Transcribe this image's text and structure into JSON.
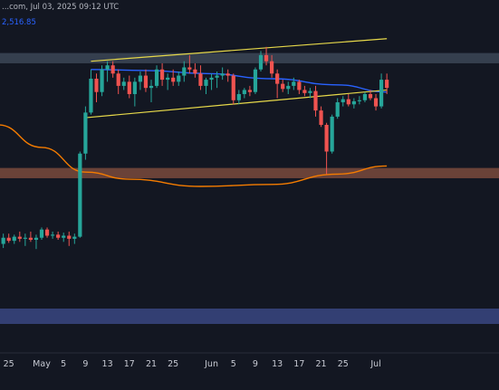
{
  "header": {
    "source_time": "...com, Jul 03, 2025 09:12 UTC",
    "ma_value": "2,516.85"
  },
  "colors": {
    "background": "#131722",
    "bullish": "#26a69a",
    "bearish": "#ef5350",
    "ma_blue": "#2962ff",
    "ma_orange": "#f57c00",
    "trendline": "#e6d84a",
    "zone_resistance": "#3c4656",
    "zone_support": "#7a4a3c",
    "zone_lower": "#3a4781"
  },
  "chart_data": {
    "type": "candlestick",
    "title": "",
    "x_tick_labels": [
      "25",
      "May",
      "5",
      "9",
      "13",
      "17",
      "21",
      "25",
      "Jun",
      "5",
      "9",
      "13",
      "17",
      "21",
      "25",
      "Jul"
    ],
    "grid": false,
    "zones": [
      {
        "name": "resistance",
        "from": 2700,
        "to": 2650
      },
      {
        "name": "support",
        "from": 2140,
        "to": 2090
      },
      {
        "name": "lower",
        "from": 1455,
        "to": 1380
      }
    ],
    "trendlines": [
      {
        "name": "upper",
        "from": {
          "x": "May 10",
          "y": 2660
        },
        "to": {
          "x": "Jul 03",
          "y": 2770
        }
      },
      {
        "name": "lower",
        "from": {
          "x": "May 9",
          "y": 2385
        },
        "to": {
          "x": "Jul 03",
          "y": 2520
        }
      }
    ],
    "series": [
      {
        "name": "",
        "type": "moving_average",
        "color": "#2962ff",
        "values": [
          {
            "x": "May 10",
            "y": 2620
          },
          {
            "x": "May 20",
            "y": 2615
          },
          {
            "x": "May 31",
            "y": 2600
          },
          {
            "x": "Jun 12",
            "y": 2575
          },
          {
            "x": "Jun 24",
            "y": 2545
          },
          {
            "x": "Jul 03",
            "y": 2510
          }
        ]
      },
      {
        "name": "",
        "type": "moving_average",
        "color": "#f57c00",
        "values": [
          {
            "x": "Apr 23",
            "y": 2350
          },
          {
            "x": "May 1",
            "y": 2240
          },
          {
            "x": "May 9",
            "y": 2120
          },
          {
            "x": "May 17",
            "y": 2085
          },
          {
            "x": "May 30",
            "y": 2050
          },
          {
            "x": "Jun 12",
            "y": 2060
          },
          {
            "x": "Jun 24",
            "y": 2110
          },
          {
            "x": "Jul 03",
            "y": 2150
          }
        ]
      }
    ],
    "candles": [
      {
        "d": "Apr 23",
        "o": 1790,
        "h": 1810,
        "l": 1750,
        "c": 1770
      },
      {
        "d": "Apr 24",
        "o": 1770,
        "h": 1820,
        "l": 1750,
        "c": 1800
      },
      {
        "d": "Apr 25",
        "o": 1800,
        "h": 1820,
        "l": 1775,
        "c": 1785
      },
      {
        "d": "Apr 26",
        "o": 1785,
        "h": 1815,
        "l": 1770,
        "c": 1805
      },
      {
        "d": "Apr 27",
        "o": 1805,
        "h": 1830,
        "l": 1780,
        "c": 1795
      },
      {
        "d": "Apr 28",
        "o": 1795,
        "h": 1820,
        "l": 1760,
        "c": 1800
      },
      {
        "d": "Apr 29",
        "o": 1800,
        "h": 1830,
        "l": 1780,
        "c": 1790
      },
      {
        "d": "Apr 30",
        "o": 1790,
        "h": 1815,
        "l": 1745,
        "c": 1800
      },
      {
        "d": "May 1",
        "o": 1800,
        "h": 1850,
        "l": 1790,
        "c": 1840
      },
      {
        "d": "May 2",
        "o": 1840,
        "h": 1850,
        "l": 1800,
        "c": 1810
      },
      {
        "d": "May 3",
        "o": 1810,
        "h": 1830,
        "l": 1795,
        "c": 1815
      },
      {
        "d": "May 4",
        "o": 1815,
        "h": 1830,
        "l": 1790,
        "c": 1800
      },
      {
        "d": "May 5",
        "o": 1800,
        "h": 1825,
        "l": 1780,
        "c": 1810
      },
      {
        "d": "May 6",
        "o": 1810,
        "h": 1830,
        "l": 1760,
        "c": 1795
      },
      {
        "d": "May 7",
        "o": 1795,
        "h": 1820,
        "l": 1770,
        "c": 1805
      },
      {
        "d": "May 8",
        "o": 1805,
        "h": 2220,
        "l": 1800,
        "c": 2210
      },
      {
        "d": "May 9",
        "o": 2210,
        "h": 2440,
        "l": 2180,
        "c": 2410
      },
      {
        "d": "May 10",
        "o": 2410,
        "h": 2620,
        "l": 2400,
        "c": 2575
      },
      {
        "d": "May 11",
        "o": 2575,
        "h": 2600,
        "l": 2460,
        "c": 2510
      },
      {
        "d": "May 12",
        "o": 2510,
        "h": 2640,
        "l": 2490,
        "c": 2620
      },
      {
        "d": "May 13",
        "o": 2620,
        "h": 2660,
        "l": 2560,
        "c": 2640
      },
      {
        "d": "May 14",
        "o": 2640,
        "h": 2660,
        "l": 2580,
        "c": 2600
      },
      {
        "d": "May 15",
        "o": 2600,
        "h": 2620,
        "l": 2500,
        "c": 2540
      },
      {
        "d": "May 16",
        "o": 2540,
        "h": 2580,
        "l": 2520,
        "c": 2560
      },
      {
        "d": "May 17",
        "o": 2560,
        "h": 2590,
        "l": 2480,
        "c": 2500
      },
      {
        "d": "May 18",
        "o": 2500,
        "h": 2580,
        "l": 2440,
        "c": 2560
      },
      {
        "d": "May 19",
        "o": 2560,
        "h": 2610,
        "l": 2520,
        "c": 2590
      },
      {
        "d": "May 20",
        "o": 2590,
        "h": 2620,
        "l": 2510,
        "c": 2530
      },
      {
        "d": "May 21",
        "o": 2530,
        "h": 2570,
        "l": 2460,
        "c": 2540
      },
      {
        "d": "May 22",
        "o": 2540,
        "h": 2640,
        "l": 2530,
        "c": 2620
      },
      {
        "d": "May 23",
        "o": 2620,
        "h": 2650,
        "l": 2540,
        "c": 2570
      },
      {
        "d": "May 24",
        "o": 2570,
        "h": 2600,
        "l": 2520,
        "c": 2580
      },
      {
        "d": "May 25",
        "o": 2580,
        "h": 2620,
        "l": 2540,
        "c": 2560
      },
      {
        "d": "May 26",
        "o": 2560,
        "h": 2610,
        "l": 2540,
        "c": 2590
      },
      {
        "d": "May 27",
        "o": 2590,
        "h": 2660,
        "l": 2560,
        "c": 2630
      },
      {
        "d": "May 28",
        "o": 2630,
        "h": 2690,
        "l": 2600,
        "c": 2620
      },
      {
        "d": "May 29",
        "o": 2620,
        "h": 2650,
        "l": 2580,
        "c": 2600
      },
      {
        "d": "May 30",
        "o": 2600,
        "h": 2640,
        "l": 2520,
        "c": 2540
      },
      {
        "d": "May 31",
        "o": 2540,
        "h": 2580,
        "l": 2500,
        "c": 2570
      },
      {
        "d": "Jun 1",
        "o": 2570,
        "h": 2600,
        "l": 2520,
        "c": 2580
      },
      {
        "d": "Jun 2",
        "o": 2580,
        "h": 2610,
        "l": 2530,
        "c": 2590
      },
      {
        "d": "Jun 3",
        "o": 2590,
        "h": 2630,
        "l": 2570,
        "c": 2600
      },
      {
        "d": "Jun 4",
        "o": 2600,
        "h": 2620,
        "l": 2560,
        "c": 2590
      },
      {
        "d": "Jun 5",
        "o": 2590,
        "h": 2600,
        "l": 2450,
        "c": 2470
      },
      {
        "d": "Jun 6",
        "o": 2470,
        "h": 2520,
        "l": 2450,
        "c": 2500
      },
      {
        "d": "Jun 7",
        "o": 2500,
        "h": 2530,
        "l": 2480,
        "c": 2520
      },
      {
        "d": "Jun 8",
        "o": 2520,
        "h": 2540,
        "l": 2490,
        "c": 2510
      },
      {
        "d": "Jun 9",
        "o": 2510,
        "h": 2630,
        "l": 2500,
        "c": 2620
      },
      {
        "d": "Jun 10",
        "o": 2620,
        "h": 2710,
        "l": 2610,
        "c": 2690
      },
      {
        "d": "Jun 11",
        "o": 2690,
        "h": 2730,
        "l": 2640,
        "c": 2660
      },
      {
        "d": "Jun 12",
        "o": 2660,
        "h": 2690,
        "l": 2580,
        "c": 2600
      },
      {
        "d": "Jun 13",
        "o": 2600,
        "h": 2620,
        "l": 2480,
        "c": 2550
      },
      {
        "d": "Jun 14",
        "o": 2550,
        "h": 2570,
        "l": 2510,
        "c": 2525
      },
      {
        "d": "Jun 15",
        "o": 2525,
        "h": 2560,
        "l": 2500,
        "c": 2540
      },
      {
        "d": "Jun 16",
        "o": 2540,
        "h": 2580,
        "l": 2520,
        "c": 2560
      },
      {
        "d": "Jun 17",
        "o": 2560,
        "h": 2570,
        "l": 2500,
        "c": 2520
      },
      {
        "d": "Jun 18",
        "o": 2520,
        "h": 2540,
        "l": 2490,
        "c": 2505
      },
      {
        "d": "Jun 19",
        "o": 2505,
        "h": 2530,
        "l": 2480,
        "c": 2515
      },
      {
        "d": "Jun 20",
        "o": 2515,
        "h": 2540,
        "l": 2390,
        "c": 2420
      },
      {
        "d": "Jun 21",
        "o": 2420,
        "h": 2440,
        "l": 2340,
        "c": 2350
      },
      {
        "d": "Jun 22",
        "o": 2350,
        "h": 2360,
        "l": 2110,
        "c": 2220
      },
      {
        "d": "Jun 23",
        "o": 2220,
        "h": 2400,
        "l": 2210,
        "c": 2390
      },
      {
        "d": "Jun 24",
        "o": 2390,
        "h": 2480,
        "l": 2380,
        "c": 2460
      },
      {
        "d": "Jun 25",
        "o": 2460,
        "h": 2490,
        "l": 2440,
        "c": 2475
      },
      {
        "d": "Jun 26",
        "o": 2475,
        "h": 2500,
        "l": 2440,
        "c": 2450
      },
      {
        "d": "Jun 27",
        "o": 2450,
        "h": 2480,
        "l": 2430,
        "c": 2465
      },
      {
        "d": "Jun 28",
        "o": 2465,
        "h": 2490,
        "l": 2450,
        "c": 2470
      },
      {
        "d": "Jun 29",
        "o": 2470,
        "h": 2510,
        "l": 2460,
        "c": 2500
      },
      {
        "d": "Jun 30",
        "o": 2500,
        "h": 2520,
        "l": 2470,
        "c": 2480
      },
      {
        "d": "Jul 1",
        "o": 2480,
        "h": 2500,
        "l": 2420,
        "c": 2440
      },
      {
        "d": "Jul 2",
        "o": 2440,
        "h": 2600,
        "l": 2430,
        "c": 2570
      },
      {
        "d": "Jul 3",
        "o": 2570,
        "h": 2600,
        "l": 2500,
        "c": 2530
      }
    ]
  }
}
